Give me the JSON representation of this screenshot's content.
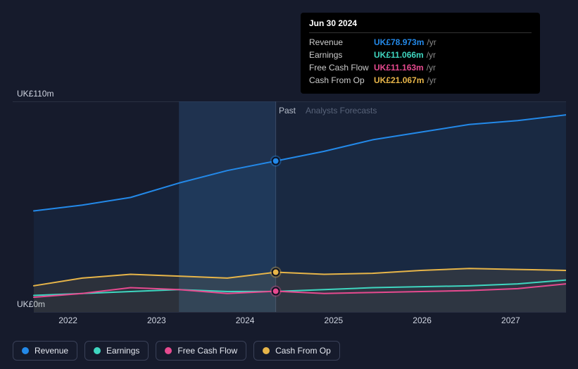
{
  "chart": {
    "type": "line-area",
    "background_color": "#161b2c",
    "grid_color": "#2a3042",
    "text_color": "#a8b0c0",
    "split_x_index": 3,
    "highlight_color_left": "rgba(40,70,110,0.55)",
    "highlight_color_right": "rgba(30,50,80,0.25)",
    "y_axis": {
      "min": 0,
      "max": 110,
      "label_min": "UK£0m",
      "label_max": "UK£110m",
      "label_fontsize": 12
    },
    "x_axis": {
      "labels": [
        "2022",
        "2023",
        "2024",
        "2025",
        "2026",
        "2027"
      ],
      "positions_x": [
        0.1,
        0.26,
        0.42,
        0.58,
        0.74,
        0.9
      ],
      "fontsize": 12
    },
    "period_labels": {
      "past": "Past",
      "forecast": "Analysts Forecasts",
      "past_color": "#e5e8f0",
      "forecast_color": "#6b7387"
    },
    "series": [
      {
        "id": "revenue",
        "label": "Revenue",
        "color": "#2389e9",
        "fill_opacity": 0.08,
        "line_width": 2,
        "data": [
          53,
          56,
          60,
          67.5,
          74,
          78.973,
          84,
          90,
          94,
          98,
          100,
          103
        ]
      },
      {
        "id": "cash_from_op",
        "label": "Cash From Op",
        "color": "#e7b549",
        "fill_opacity": 0.1,
        "line_width": 2,
        "data": [
          14,
          18,
          20,
          19,
          18,
          21.067,
          20,
          20.5,
          22,
          23,
          22.5,
          22
        ]
      },
      {
        "id": "free_cash_flow",
        "label": "Free Cash Flow",
        "color": "#e64a8f",
        "fill_opacity": 0,
        "line_width": 2,
        "data": [
          8,
          10,
          13,
          12,
          10,
          11.163,
          10,
          10.5,
          11,
          11.5,
          12.5,
          15
        ]
      },
      {
        "id": "earnings",
        "label": "Earnings",
        "color": "#3fd6c0",
        "fill_opacity": 0,
        "line_width": 2,
        "data": [
          9,
          10,
          11,
          12,
          11,
          11.066,
          12,
          13,
          13.5,
          14,
          15,
          17
        ]
      }
    ],
    "marker_index": 5,
    "marker_style": {
      "radius": 5,
      "stroke": "#fff",
      "stroke_width": 0
    }
  },
  "tooltip": {
    "date": "Jun 30 2024",
    "unit": "/yr",
    "rows": [
      {
        "label": "Revenue",
        "value": "UK£78.973m",
        "color": "#2389e9"
      },
      {
        "label": "Earnings",
        "value": "UK£11.066m",
        "color": "#3fd6c0"
      },
      {
        "label": "Free Cash Flow",
        "value": "UK£11.163m",
        "color": "#e64a8f"
      },
      {
        "label": "Cash From Op",
        "value": "UK£21.067m",
        "color": "#e7b549"
      }
    ]
  },
  "legend": {
    "items": [
      {
        "id": "revenue",
        "label": "Revenue",
        "color": "#2389e9"
      },
      {
        "id": "earnings",
        "label": "Earnings",
        "color": "#3fd6c0"
      },
      {
        "id": "free_cash_flow",
        "label": "Free Cash Flow",
        "color": "#e64a8f"
      },
      {
        "id": "cash_from_op",
        "label": "Cash From Op",
        "color": "#e7b549"
      }
    ]
  }
}
